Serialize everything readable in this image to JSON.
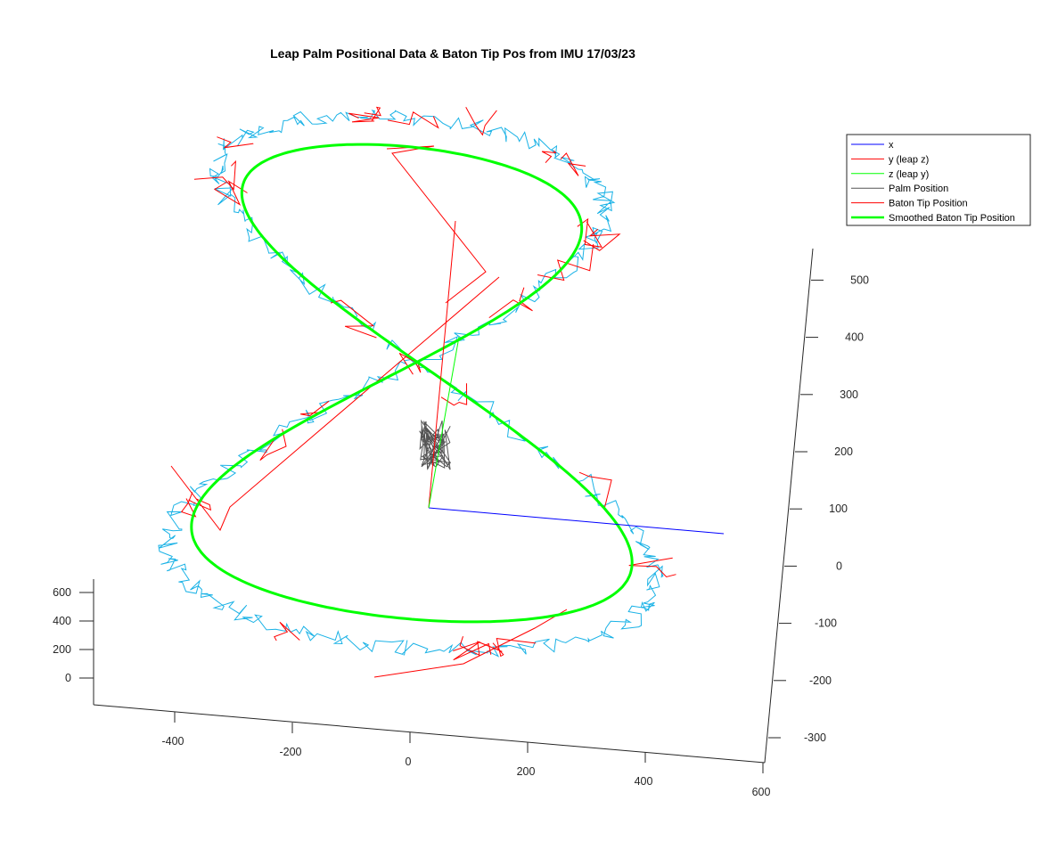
{
  "chart_data": {
    "type": "line",
    "title": "Leap Palm Positional Data & Baton Tip Pos from IMU 17/03/23",
    "x_ticks": [
      "-400",
      "-200",
      "0",
      "200",
      "400",
      "600"
    ],
    "y_ticks": [
      "0",
      "200",
      "400",
      "600"
    ],
    "z_ticks": [
      "-300",
      "-200",
      "-100",
      "0",
      "100",
      "200",
      "300",
      "400",
      "500"
    ],
    "xlim": [
      -550,
      600
    ],
    "ylim": [
      -150,
      700
    ],
    "zlim": [
      -340,
      550
    ],
    "grid": false,
    "legend_position": "top-right",
    "series": [
      {
        "name": "x",
        "color": "#0000ff"
      },
      {
        "name": "y (leap z)",
        "color": "#ff0000"
      },
      {
        "name": "z (leap y)",
        "color": "#00ff00"
      },
      {
        "name": "Palm Position",
        "color": "#555555"
      },
      {
        "name": "Baton Tip Position",
        "color": "#ff0000"
      },
      {
        "name": "Smoothed Baton Tip Position",
        "color": "#00ff00"
      }
    ],
    "raw_trace_color": "#1ab2e6"
  }
}
